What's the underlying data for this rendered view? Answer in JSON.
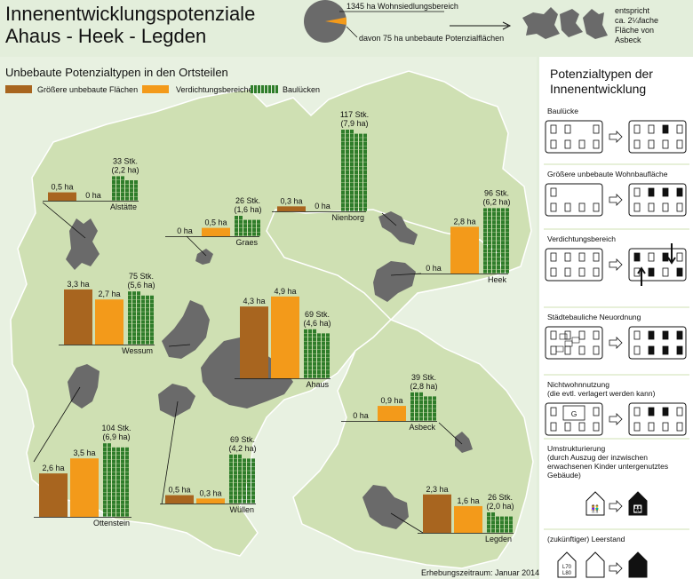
{
  "title": {
    "line1": "Innenentwicklungspotenziale",
    "line2": "Ahaus - Heek - Legden"
  },
  "pie": {
    "total_label": "1345 ha Wohnsiedlungsbereich",
    "part_label": "davon 75 ha unbebaute Potenzialflächen",
    "total_ha": 1345,
    "part_ha": 75,
    "compare_lines": [
      "entspricht",
      "ca. 2¼fache",
      "Fläche von",
      "Asbeck"
    ]
  },
  "map": {
    "section_title": "Unbebaute Potenzialtypen in den Ortsteilen",
    "footer": "Erhebungszeitraum: Januar 2014"
  },
  "colors": {
    "large": "#a8651f",
    "dense": "#f39a1a",
    "gaps": "#2f7d2a",
    "settlement": "#6a6a6a",
    "land": "#cfe0b3",
    "background": "#e3eedb"
  },
  "chart_data": {
    "type": "bar",
    "series": [
      {
        "name": "Größere unbebaute Flächen",
        "color": "#a8651f"
      },
      {
        "name": "Verdichtungsbereiche",
        "color": "#f39a1a"
      },
      {
        "name": "Baulücken",
        "color": "#2f7d2a"
      }
    ],
    "places": [
      {
        "name": "Alstätte",
        "large": "0,5 ha",
        "large_ha": 0.5,
        "dense": "0 ha",
        "dense_ha": 0,
        "gaps_line1": "33 Stk.",
        "gaps_line2": "(2,2 ha)",
        "gaps_count": 33
      },
      {
        "name": "Graes",
        "large": "0 ha",
        "large_ha": 0,
        "dense": "0,5 ha",
        "dense_ha": 0.5,
        "gaps_line1": "26 Stk.",
        "gaps_line2": "(1,6 ha)",
        "gaps_count": 26
      },
      {
        "name": "Nienborg",
        "large": "0,3 ha",
        "large_ha": 0.3,
        "dense": "0 ha",
        "dense_ha": 0,
        "gaps_line1": "117 Stk.",
        "gaps_line2": "(7,9 ha)",
        "gaps_count": 117
      },
      {
        "name": "Heek",
        "large": "0 ha",
        "large_ha": 0,
        "dense": "2,8 ha",
        "dense_ha": 2.8,
        "gaps_line1": "96 Stk.",
        "gaps_line2": "(6,2 ha)",
        "gaps_count": 96
      },
      {
        "name": "Wessum",
        "large": "3,3 ha",
        "large_ha": 3.3,
        "dense": "2,7 ha",
        "dense_ha": 2.7,
        "gaps_line1": "75 Stk.",
        "gaps_line2": "(5,6 ha)",
        "gaps_count": 75
      },
      {
        "name": "Ahaus",
        "large": "4,3 ha",
        "large_ha": 4.3,
        "dense": "4,9 ha",
        "dense_ha": 4.9,
        "gaps_line1": "69 Stk.",
        "gaps_line2": "(4,6 ha)",
        "gaps_count": 69
      },
      {
        "name": "Asbeck",
        "large": "0 ha",
        "large_ha": 0,
        "dense": "0,9 ha",
        "dense_ha": 0.9,
        "gaps_line1": "39 Stk.",
        "gaps_line2": "(2,8 ha)",
        "gaps_count": 39
      },
      {
        "name": "Ottenstein",
        "large": "2,6 ha",
        "large_ha": 2.6,
        "dense": "3,5 ha",
        "dense_ha": 3.5,
        "gaps_line1": "104 Stk.",
        "gaps_line2": "(6,9 ha)",
        "gaps_count": 104
      },
      {
        "name": "Wüllen",
        "large": "0,5 ha",
        "large_ha": 0.5,
        "dense": "0,3 ha",
        "dense_ha": 0.3,
        "gaps_line1": "69 Stk.",
        "gaps_line2": "(4,2 ha)",
        "gaps_count": 69
      },
      {
        "name": "Legden",
        "large": "2,3 ha",
        "large_ha": 2.3,
        "dense": "1,6 ha",
        "dense_ha": 1.6,
        "gaps_line1": "26 Stk.",
        "gaps_line2": "(2,0 ha)",
        "gaps_count": 26
      }
    ]
  },
  "types_panel": {
    "title_line1": "Potenzialtypen der",
    "title_line2": "Innenentwicklung",
    "items": [
      {
        "label": "Baulücke"
      },
      {
        "label": "Größere unbebaute Wohnbaufläche"
      },
      {
        "label": "Verdichtungsbereich"
      },
      {
        "label": "Städtebauliche Neuordnung"
      },
      {
        "label": "Nichtwohnnutzung",
        "label2": "(die evtl. verlagert werden kann)",
        "box_letter": "G"
      },
      {
        "label": "Umstrukturierung",
        "label2": "(durch Auszug der inzwischen",
        "label3": "erwachsenen Kinder untergenutztes",
        "label4": "Gebäude)"
      },
      {
        "label": "(zukünftiger) Leerstand",
        "age1": "L70",
        "age2": "L80"
      }
    ]
  }
}
